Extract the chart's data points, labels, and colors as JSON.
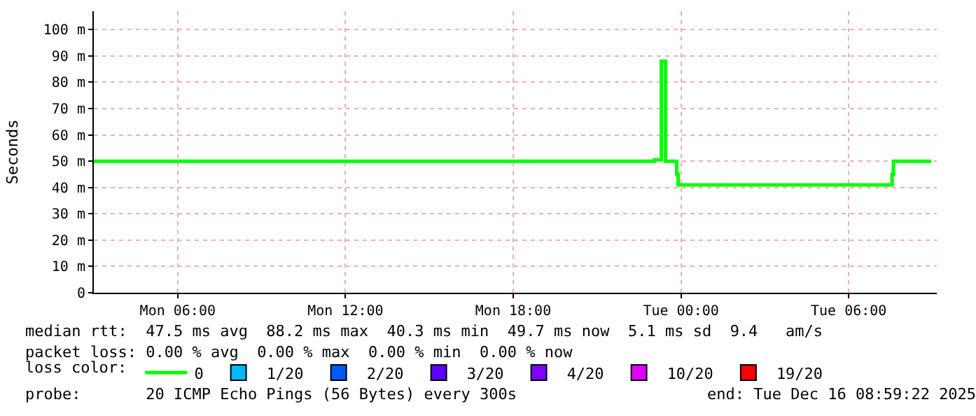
{
  "chart_data": {
    "type": "step",
    "ylabel": "Seconds",
    "xlim": [
      "2025-12-15T03:00",
      "2025-12-16T09:09"
    ],
    "xticks": [
      {
        "value": "2025-12-15T06:00",
        "label": "Mon 06:00"
      },
      {
        "value": "2025-12-15T12:00",
        "label": "Mon 12:00"
      },
      {
        "value": "2025-12-15T18:00",
        "label": "Mon 18:00"
      },
      {
        "value": "2025-12-16T00:00",
        "label": "Tue 00:00"
      },
      {
        "value": "2025-12-16T06:00",
        "label": "Tue 06:00"
      }
    ],
    "ylim": [
      0,
      107
    ],
    "yticks": [
      0,
      {
        "value": 10,
        "label": "10 m"
      },
      {
        "value": 20,
        "label": "20 m"
      },
      {
        "value": 30,
        "label": "30 m"
      },
      {
        "value": 40,
        "label": "40 m"
      },
      {
        "value": 50,
        "label": "50 m"
      },
      {
        "value": 60,
        "label": "60 m"
      },
      {
        "value": 70,
        "label": "70 m"
      },
      {
        "value": 80,
        "label": "80 m"
      },
      {
        "value": 90,
        "label": "90 m"
      },
      {
        "value": 100,
        "label": "100 m"
      }
    ],
    "grid": true,
    "legend": "bottom",
    "legend_title": "loss color:",
    "series": [
      {
        "name": "0",
        "color": "#00ff00",
        "x": [
          "2025-12-15T03:00",
          "2025-12-15T23:03",
          "2025-12-15T23:18",
          "2025-12-15T23:27",
          "2025-12-15T23:51",
          "2025-12-15T23:54",
          "2025-12-16T07:33",
          "2025-12-16T07:36",
          "2025-12-16T08:57"
        ],
        "values": [
          50,
          50.5,
          88,
          50,
          45,
          41,
          45,
          50,
          50
        ]
      },
      {
        "name": "1/20",
        "color": "#00b8ff",
        "type": "scatter",
        "marker": "square",
        "values": [
          null
        ]
      },
      {
        "name": "2/20",
        "color": "#0059ff",
        "type": "scatter",
        "marker": "square",
        "values": [
          null
        ]
      },
      {
        "name": "3/20",
        "color": "#5e00ff",
        "type": "scatter",
        "marker": "square",
        "values": [
          null
        ]
      },
      {
        "name": "4/20",
        "color": "#7e00ff",
        "type": "scatter",
        "marker": "square",
        "values": [
          null
        ]
      },
      {
        "name": "10/20",
        "color": "#dd00ff",
        "type": "scatter",
        "marker": "square",
        "values": [
          null
        ]
      },
      {
        "name": "19/20",
        "color": "#ff0000",
        "type": "scatter",
        "marker": "square",
        "values": [
          null
        ]
      }
    ],
    "annotations": [
      "median rtt:  47.5 ms avg  88.2 ms max  40.3 ms min  49.7 ms now  5.1 ms sd  9.4   am/s",
      "packet loss: 0.00 % avg  0.00 % max  0.00 % min  0.00 % now",
      "probe:       20 ICMP Echo Pings (56 Bytes) every 300s",
      "end: Tue Dec 16 08:59:22 2025"
    ]
  }
}
